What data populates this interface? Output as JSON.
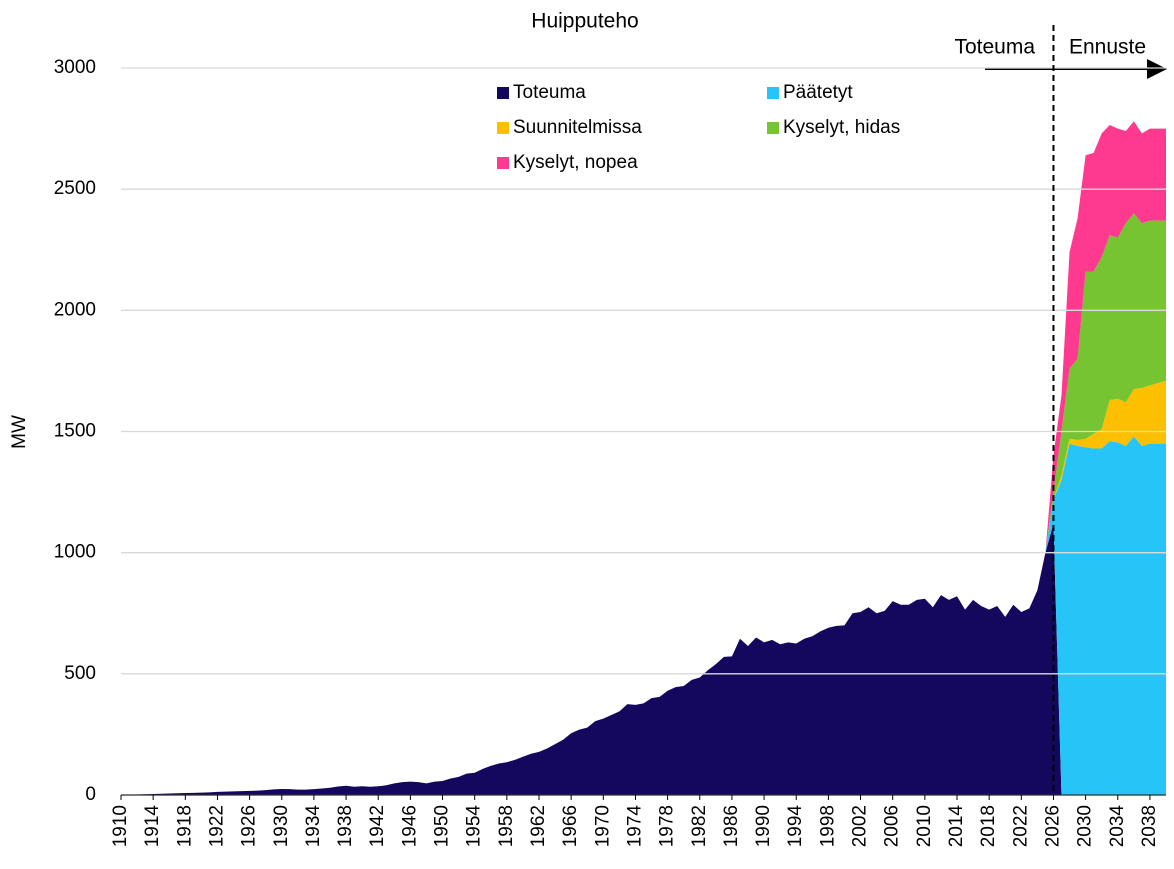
{
  "chart_data": {
    "type": "stacked_area",
    "title": "Huipputeho",
    "y_label": "MW",
    "annotations": [
      {
        "text": "Toteuma"
      },
      {
        "text": "Ennuste"
      }
    ],
    "divider_x": 2026,
    "x": [
      1910,
      1911,
      1912,
      1913,
      1914,
      1915,
      1916,
      1917,
      1918,
      1919,
      1920,
      1921,
      1922,
      1923,
      1924,
      1925,
      1926,
      1927,
      1928,
      1929,
      1930,
      1931,
      1932,
      1933,
      1934,
      1935,
      1936,
      1937,
      1938,
      1939,
      1940,
      1941,
      1942,
      1943,
      1944,
      1945,
      1946,
      1947,
      1948,
      1949,
      1950,
      1951,
      1952,
      1953,
      1954,
      1955,
      1956,
      1957,
      1958,
      1959,
      1960,
      1961,
      1962,
      1963,
      1964,
      1965,
      1966,
      1967,
      1968,
      1969,
      1970,
      1971,
      1972,
      1973,
      1974,
      1975,
      1976,
      1977,
      1978,
      1979,
      1980,
      1981,
      1982,
      1983,
      1984,
      1985,
      1986,
      1987,
      1988,
      1989,
      1990,
      1991,
      1992,
      1993,
      1994,
      1995,
      1996,
      1997,
      1998,
      1999,
      2000,
      2001,
      2002,
      2003,
      2004,
      2005,
      2006,
      2007,
      2008,
      2009,
      2010,
      2011,
      2012,
      2013,
      2014,
      2015,
      2016,
      2017,
      2018,
      2019,
      2020,
      2021,
      2022,
      2023,
      2024,
      2025,
      2026,
      2027,
      2028,
      2029,
      2030,
      2031,
      2032,
      2033,
      2034,
      2035,
      2036,
      2037,
      2038,
      2039,
      2040
    ],
    "series": [
      {
        "name": "Toteuma",
        "color": "#14085e",
        "values": [
          0,
          1,
          2,
          3,
          4,
          5,
          6,
          7,
          8,
          9,
          10,
          11,
          13,
          14,
          15,
          16,
          17,
          18,
          20,
          23,
          25,
          24,
          22,
          22,
          24,
          27,
          30,
          35,
          38,
          34,
          36,
          34,
          36,
          40,
          48,
          53,
          55,
          53,
          48,
          55,
          58,
          68,
          75,
          88,
          92,
          108,
          120,
          130,
          135,
          145,
          158,
          170,
          178,
          192,
          210,
          228,
          255,
          270,
          278,
          305,
          315,
          330,
          345,
          375,
          372,
          378,
          400,
          405,
          430,
          445,
          450,
          475,
          485,
          515,
          540,
          570,
          572,
          645,
          615,
          650,
          630,
          640,
          622,
          630,
          625,
          645,
          655,
          675,
          690,
          698,
          700,
          750,
          755,
          775,
          750,
          760,
          800,
          785,
          785,
          805,
          810,
          775,
          825,
          805,
          820,
          765,
          805,
          780,
          765,
          780,
          735,
          785,
          755,
          770,
          845,
          1000,
          1120,
          0,
          null,
          null,
          null,
          null,
          null,
          null,
          null,
          null,
          null,
          null,
          null,
          null,
          null
        ]
      },
      {
        "name": "Päätetyt",
        "color": "#27c4f8",
        "values": [
          null,
          null,
          null,
          null,
          null,
          null,
          null,
          null,
          null,
          null,
          null,
          null,
          null,
          null,
          null,
          null,
          null,
          null,
          null,
          null,
          null,
          null,
          null,
          null,
          null,
          null,
          null,
          null,
          null,
          null,
          null,
          null,
          null,
          null,
          null,
          null,
          null,
          null,
          null,
          null,
          null,
          null,
          null,
          null,
          null,
          null,
          null,
          null,
          null,
          null,
          null,
          null,
          null,
          null,
          null,
          null,
          null,
          null,
          null,
          null,
          null,
          null,
          null,
          null,
          null,
          null,
          null,
          null,
          null,
          null,
          null,
          null,
          null,
          null,
          null,
          null,
          null,
          null,
          null,
          null,
          null,
          null,
          null,
          null,
          null,
          null,
          null,
          null,
          null,
          null,
          null,
          null,
          null,
          null,
          null,
          null,
          null,
          null,
          null,
          null,
          null,
          null,
          null,
          null,
          null,
          null,
          null,
          null,
          null,
          null,
          null,
          null,
          null,
          null,
          null,
          0,
          100,
          1300,
          1450,
          1440,
          1435,
          1430,
          1430,
          1460,
          1455,
          1440,
          1480,
          1440,
          1450,
          1450,
          1450
        ]
      },
      {
        "name": "Suunnitelmissa",
        "color": "#fcc000",
        "values": [
          null,
          null,
          null,
          null,
          null,
          null,
          null,
          null,
          null,
          null,
          null,
          null,
          null,
          null,
          null,
          null,
          null,
          null,
          null,
          null,
          null,
          null,
          null,
          null,
          null,
          null,
          null,
          null,
          null,
          null,
          null,
          null,
          null,
          null,
          null,
          null,
          null,
          null,
          null,
          null,
          null,
          null,
          null,
          null,
          null,
          null,
          null,
          null,
          null,
          null,
          null,
          null,
          null,
          null,
          null,
          null,
          null,
          null,
          null,
          null,
          null,
          null,
          null,
          null,
          null,
          null,
          null,
          null,
          null,
          null,
          null,
          null,
          null,
          null,
          null,
          null,
          null,
          null,
          null,
          null,
          null,
          null,
          null,
          null,
          null,
          null,
          null,
          null,
          null,
          null,
          null,
          null,
          null,
          null,
          null,
          null,
          null,
          null,
          null,
          null,
          null,
          null,
          null,
          null,
          null,
          null,
          null,
          null,
          null,
          null,
          null,
          null,
          null,
          null,
          null,
          0,
          0,
          20,
          20,
          25,
          35,
          60,
          80,
          170,
          180,
          180,
          195,
          240,
          240,
          250,
          260
        ]
      },
      {
        "name": "Kyselyt, hidas",
        "color": "#76c431",
        "values": [
          null,
          null,
          null,
          null,
          null,
          null,
          null,
          null,
          null,
          null,
          null,
          null,
          null,
          null,
          null,
          null,
          null,
          null,
          null,
          null,
          null,
          null,
          null,
          null,
          null,
          null,
          null,
          null,
          null,
          null,
          null,
          null,
          null,
          null,
          null,
          null,
          null,
          null,
          null,
          null,
          null,
          null,
          null,
          null,
          null,
          null,
          null,
          null,
          null,
          null,
          null,
          null,
          null,
          null,
          null,
          null,
          null,
          null,
          null,
          null,
          null,
          null,
          null,
          null,
          null,
          null,
          null,
          null,
          null,
          null,
          null,
          null,
          null,
          null,
          null,
          null,
          null,
          null,
          null,
          null,
          null,
          null,
          null,
          null,
          null,
          null,
          null,
          null,
          null,
          null,
          null,
          null,
          null,
          null,
          null,
          null,
          null,
          null,
          null,
          null,
          null,
          null,
          null,
          null,
          null,
          null,
          null,
          null,
          null,
          null,
          null,
          null,
          null,
          null,
          null,
          0,
          30,
          180,
          290,
          335,
          690,
          670,
          710,
          680,
          665,
          740,
          725,
          680,
          680,
          670,
          660
        ]
      },
      {
        "name": "Kyselyt, nopea",
        "color": "#fd3a8f",
        "values": [
          null,
          null,
          null,
          null,
          null,
          null,
          null,
          null,
          null,
          null,
          null,
          null,
          null,
          null,
          null,
          null,
          null,
          null,
          null,
          null,
          null,
          null,
          null,
          null,
          null,
          null,
          null,
          null,
          null,
          null,
          null,
          null,
          null,
          null,
          null,
          null,
          null,
          null,
          null,
          null,
          null,
          null,
          null,
          null,
          null,
          null,
          null,
          null,
          null,
          null,
          null,
          null,
          null,
          null,
          null,
          null,
          null,
          null,
          null,
          null,
          null,
          null,
          null,
          null,
          null,
          null,
          null,
          null,
          null,
          null,
          null,
          null,
          null,
          null,
          null,
          null,
          null,
          null,
          null,
          null,
          null,
          null,
          null,
          null,
          null,
          null,
          null,
          null,
          null,
          null,
          null,
          null,
          null,
          null,
          null,
          null,
          null,
          null,
          null,
          null,
          null,
          null,
          null,
          null,
          null,
          null,
          null,
          null,
          null,
          null,
          null,
          null,
          null,
          null,
          null,
          0,
          150,
          150,
          480,
          580,
          480,
          490,
          510,
          455,
          450,
          380,
          380,
          370,
          380,
          380,
          380
        ]
      }
    ],
    "xlim": [
      1910,
      2040
    ],
    "xticks": [
      1910,
      1914,
      1918,
      1922,
      1926,
      1930,
      1934,
      1938,
      1942,
      1946,
      1950,
      1954,
      1958,
      1962,
      1966,
      1970,
      1974,
      1978,
      1982,
      1986,
      1990,
      1994,
      1998,
      2002,
      2006,
      2010,
      2014,
      2018,
      2022,
      2026,
      2030,
      2034,
      2038
    ],
    "ylim": [
      0,
      3000
    ],
    "yticks": [
      0,
      500,
      1000,
      1500,
      2000,
      2500,
      3000
    ],
    "grid": true
  }
}
